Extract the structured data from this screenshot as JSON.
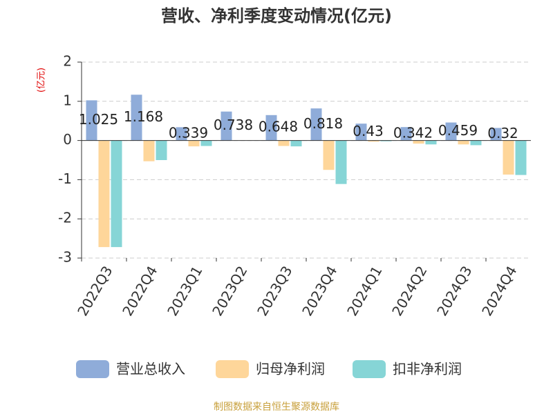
{
  "chart_data": {
    "type": "bar",
    "title": "营收、净利季度变动情况(亿元)",
    "y_axis_label": "(亿元)",
    "categories": [
      "2022Q3",
      "2022Q4",
      "2023Q1",
      "2023Q2",
      "2023Q3",
      "2023Q4",
      "2024Q1",
      "2024Q2",
      "2024Q3",
      "2024Q4"
    ],
    "series": [
      {
        "name": "营业总收入",
        "color": "#8facd9",
        "values": [
          1.025,
          1.168,
          0.339,
          0.738,
          0.648,
          0.818,
          0.43,
          0.342,
          0.459,
          0.32
        ],
        "show_labels": true
      },
      {
        "name": "归母净利润",
        "color": "#fed69a",
        "values": [
          -2.72,
          -0.53,
          -0.15,
          0,
          -0.14,
          -0.75,
          -0.03,
          -0.08,
          -0.1,
          -0.87
        ]
      },
      {
        "name": "扣非净利润",
        "color": "#86d5d6",
        "values": [
          -2.72,
          -0.5,
          -0.14,
          0,
          -0.15,
          -1.11,
          -0.02,
          -0.1,
          -0.12,
          -0.88
        ]
      }
    ],
    "ylim": [
      -3,
      2
    ],
    "yticks": [
      -3,
      -2,
      -1,
      0,
      1,
      2
    ],
    "grid": true,
    "source": "制图数据来自恒生聚源数据库"
  }
}
